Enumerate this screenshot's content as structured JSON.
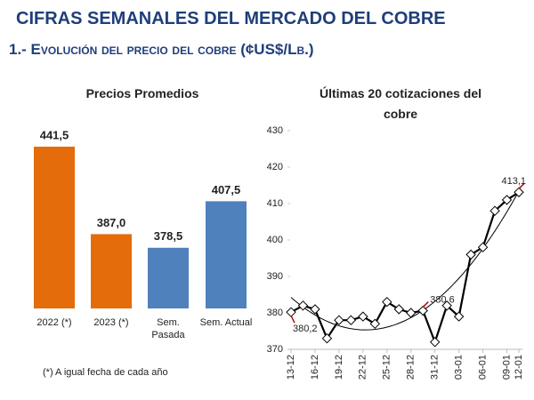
{
  "header": {
    "title": "CIFRAS SEMANALES DEL MERCADO DEL COBRE",
    "subtitle": "1.- Evolución del precio del cobre (¢US$/Lb.)"
  },
  "chart_data": [
    {
      "type": "bar",
      "title": "Precios Promedios",
      "note": "(*) A igual fecha de cada año",
      "categories": [
        "2022 (*)",
        "2023 (*)",
        "Sem. Pasada",
        "Sem. Actual"
      ],
      "values": [
        441.5,
        387.0,
        378.5,
        407.5
      ],
      "value_labels": [
        "441,5",
        "387,0",
        "378,5",
        "407,5"
      ],
      "colors": [
        "#E46C0A",
        "#E46C0A",
        "#4F81BD",
        "#4F81BD"
      ]
    },
    {
      "type": "line",
      "title": "Últimas 20 cotizaciones del cobre",
      "categories": [
        "13-12",
        null,
        "16-12",
        null,
        "19-12",
        null,
        "22-12",
        null,
        "25-12",
        null,
        "28-12",
        null,
        "31-12",
        null,
        "03-01",
        null,
        "06-01",
        null,
        "09-01",
        "12-01"
      ],
      "series": [
        {
          "name": "Cotización",
          "color": "#000000",
          "values": [
            380.2,
            382,
            381,
            373,
            378,
            378,
            379,
            377,
            383,
            381,
            380,
            380.6,
            372,
            382,
            379,
            396,
            398,
            408,
            411,
            413.1
          ],
          "value_labels": [
            "380,2",
            null,
            null,
            null,
            null,
            null,
            null,
            null,
            null,
            null,
            null,
            "380,6",
            null,
            null,
            null,
            null,
            null,
            null,
            null,
            "413,1"
          ]
        }
      ],
      "ylim": [
        370,
        430
      ],
      "yticks": [
        370,
        380,
        390,
        400,
        410,
        420,
        430
      ],
      "trendline": true
    }
  ]
}
